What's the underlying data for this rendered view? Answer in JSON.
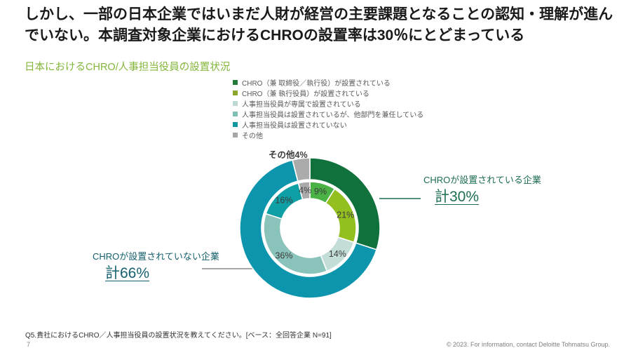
{
  "header": {
    "title": "しかし、一部の日本企業ではいまだ人財が経営の主要課題となることの認知・理解が進んでいない。本調査対象企業におけるCHROの設置率は30％にとどまっている"
  },
  "section": {
    "heading": "日本におけるCHRO/人事担当役員の設置状況"
  },
  "legend": {
    "items": [
      {
        "label": "CHRO（兼 取締役／執行役）が設置されている",
        "color": "#1f7a3a"
      },
      {
        "label": "CHRO（兼 執行役員）が設置されている",
        "color": "#8ca82a"
      },
      {
        "label": "人事担当役員が専属で設置されている",
        "color": "#bcd9d4"
      },
      {
        "label": "人事担当役員は設置されているが、他部門を兼任している",
        "color": "#7fc0b6"
      },
      {
        "label": "人事担当役員は設置されていない",
        "color": "#0f97a0"
      },
      {
        "label": "その他",
        "color": "#a6a6a6"
      }
    ]
  },
  "chart_data": {
    "type": "pie",
    "donut": true,
    "title": "日本におけるCHRO/人事担当役員の設置状況",
    "units": "%",
    "label_color": "#3c3c3c",
    "rings": {
      "inner": {
        "categories": [
          "CHRO（兼 取締役／執行役）が設置されている",
          "CHRO（兼 執行役員）が設置されている",
          "人事担当役員が専属で設置されている",
          "人事担当役員は設置されているが、他部門を兼任している",
          "人事担当役員は設置されていない",
          "その他"
        ],
        "values": [
          9,
          21,
          14,
          36,
          16,
          4
        ],
        "colors": [
          "#4bb246",
          "#93c01f",
          "#c3ded9",
          "#8ac3ba",
          "#0fa0a5",
          "#ababab"
        ]
      },
      "outer": {
        "categories": [
          "CHROが設置されている企業",
          "CHROが設置されていない企業",
          "その他"
        ],
        "values": [
          30,
          66,
          4
        ],
        "colors": [
          "#11713c",
          "#0d95ad",
          "#ababab"
        ]
      }
    },
    "other_callout": "その他4%"
  },
  "callouts": {
    "right": {
      "label": "CHROが設置されている企業",
      "value": "計30%",
      "color": "#1c6e4f",
      "line_color": "#1c6e4f"
    },
    "left": {
      "label": "CHROが設置されていない企業",
      "value": "計66%",
      "color": "#14606e",
      "line_color": "#8c8c8c"
    }
  },
  "footer": {
    "question": "Q5.貴社におけるCHRO／人事担当役員の設置状況を教えてください。[ベース：全回答企業 N=91]",
    "page_number": "7",
    "copyright": "© 2023. For information, contact Deloitte Tohmatsu Group."
  }
}
